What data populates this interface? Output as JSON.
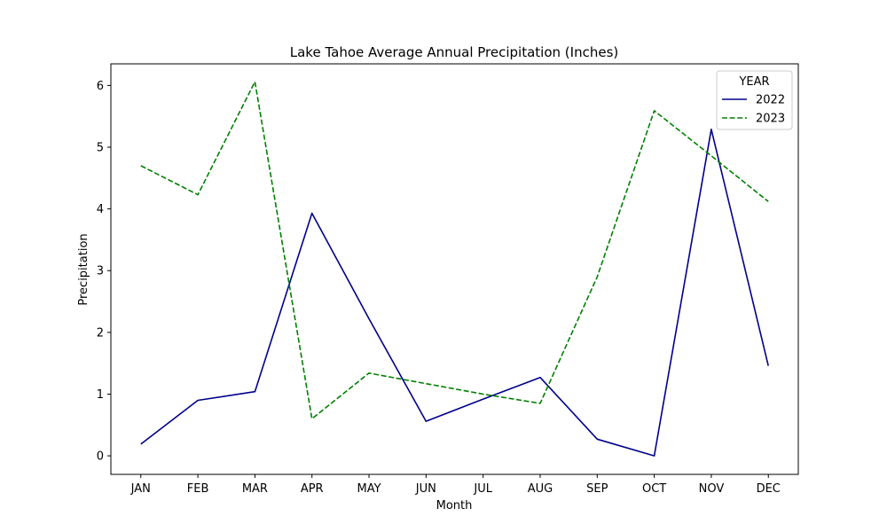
{
  "chart_data": {
    "type": "line",
    "title": "Lake Tahoe Average Annual Precipitation (Inches)",
    "xlabel": "Month",
    "ylabel": "Precipitation",
    "categories": [
      "JAN",
      "FEB",
      "MAR",
      "APR",
      "MAY",
      "JUN",
      "JUL",
      "AUG",
      "SEP",
      "OCT",
      "NOV",
      "DEC"
    ],
    "ylim": [
      -0.3,
      6.35
    ],
    "yticks": [
      0,
      1,
      2,
      3,
      4,
      5,
      6
    ],
    "grid": false,
    "legend": {
      "title": "YEAR",
      "placement": "top-right"
    },
    "series": [
      {
        "name": "2022",
        "color": "#00008b",
        "style": "solid",
        "values": [
          0.19,
          0.9,
          1.04,
          3.93,
          2.22,
          0.56,
          0.92,
          1.27,
          0.27,
          0.0,
          5.29,
          1.46
        ]
      },
      {
        "name": "2023",
        "color": "#008000",
        "style": "dashed",
        "values": [
          4.7,
          4.23,
          6.06,
          0.6,
          1.34,
          1.17,
          1.0,
          0.85,
          2.9,
          5.59,
          4.86,
          4.12
        ]
      }
    ]
  }
}
